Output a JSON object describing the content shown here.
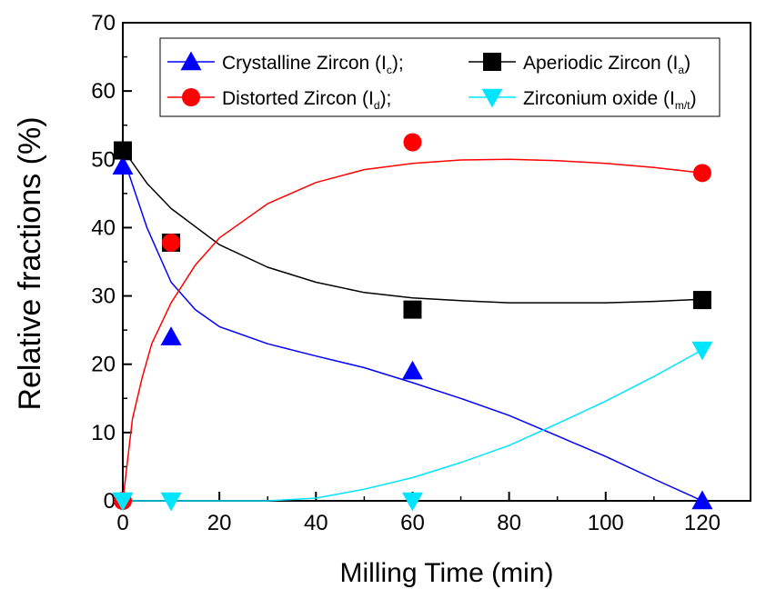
{
  "chart_data": {
    "type": "scatter",
    "xlabel": "Milling Time (min)",
    "ylabel": "Relative fractions (%)",
    "xlim": [
      0,
      130
    ],
    "ylim": [
      0,
      70
    ],
    "x_ticks": [
      "0",
      "20",
      "40",
      "60",
      "80",
      "100",
      "120"
    ],
    "y_ticks": [
      "0",
      "10",
      "20",
      "30",
      "40",
      "50",
      "60",
      "70"
    ],
    "grid": false,
    "legend_position": "top",
    "series": [
      {
        "name_text": "Crystalline Zircon (I",
        "name_sub": "c",
        "name_tail": ");",
        "marker": "triangle-up",
        "color": "#0000ff",
        "points": [
          [
            0,
            49
          ],
          [
            10,
            24
          ],
          [
            60,
            19
          ],
          [
            120,
            0
          ]
        ],
        "fit": [
          [
            0,
            50.5
          ],
          [
            5,
            40
          ],
          [
            10,
            32
          ],
          [
            15,
            28
          ],
          [
            20,
            25.5
          ],
          [
            30,
            23
          ],
          [
            40,
            21.2
          ],
          [
            50,
            19.5
          ],
          [
            60,
            17.3
          ],
          [
            70,
            15
          ],
          [
            80,
            12.5
          ],
          [
            90,
            9.5
          ],
          [
            100,
            6.5
          ],
          [
            110,
            3.2
          ],
          [
            120,
            0
          ]
        ]
      },
      {
        "name_text": "Aperiodic Zircon (I",
        "name_sub": "a",
        "name_tail": ")",
        "marker": "square",
        "color": "#000000",
        "points": [
          [
            0,
            51.3
          ],
          [
            10,
            37.8
          ],
          [
            60,
            28
          ],
          [
            120,
            29.4
          ]
        ],
        "fit": [
          [
            0,
            51.5
          ],
          [
            5,
            46.5
          ],
          [
            10,
            42.8
          ],
          [
            20,
            37.5
          ],
          [
            30,
            34.2
          ],
          [
            40,
            32
          ],
          [
            50,
            30.5
          ],
          [
            60,
            29.7
          ],
          [
            70,
            29.3
          ],
          [
            80,
            29
          ],
          [
            90,
            29
          ],
          [
            100,
            29
          ],
          [
            110,
            29.2
          ],
          [
            120,
            29.5
          ]
        ]
      },
      {
        "name_text": "Distorted Zircon (I",
        "name_sub": "d",
        "name_tail": ");",
        "marker": "circle",
        "color": "#ff0000",
        "points": [
          [
            0,
            0
          ],
          [
            10,
            37.8
          ],
          [
            60,
            52.5
          ],
          [
            120,
            48
          ]
        ],
        "fit": [
          [
            0,
            0
          ],
          [
            2,
            12
          ],
          [
            4,
            18
          ],
          [
            6,
            23
          ],
          [
            10,
            29
          ],
          [
            15,
            34.5
          ],
          [
            20,
            38.5
          ],
          [
            30,
            43.5
          ],
          [
            40,
            46.6
          ],
          [
            50,
            48.5
          ],
          [
            60,
            49.4
          ],
          [
            70,
            49.9
          ],
          [
            80,
            50
          ],
          [
            90,
            49.8
          ],
          [
            100,
            49.4
          ],
          [
            110,
            48.8
          ],
          [
            120,
            48
          ]
        ]
      },
      {
        "name_text": "Zirconium oxide (I",
        "name_sub": "m/t",
        "name_tail": ")",
        "marker": "triangle-down",
        "color": "#00e5ff",
        "points": [
          [
            0,
            0
          ],
          [
            10,
            0
          ],
          [
            60,
            0
          ],
          [
            120,
            22.1
          ]
        ],
        "fit": [
          [
            0,
            0
          ],
          [
            30,
            0
          ],
          [
            40,
            0.4
          ],
          [
            50,
            1.7
          ],
          [
            60,
            3.4
          ],
          [
            70,
            5.6
          ],
          [
            80,
            8.1
          ],
          [
            90,
            11.3
          ],
          [
            100,
            14.6
          ],
          [
            110,
            18.2
          ],
          [
            120,
            22.1
          ]
        ]
      }
    ]
  }
}
